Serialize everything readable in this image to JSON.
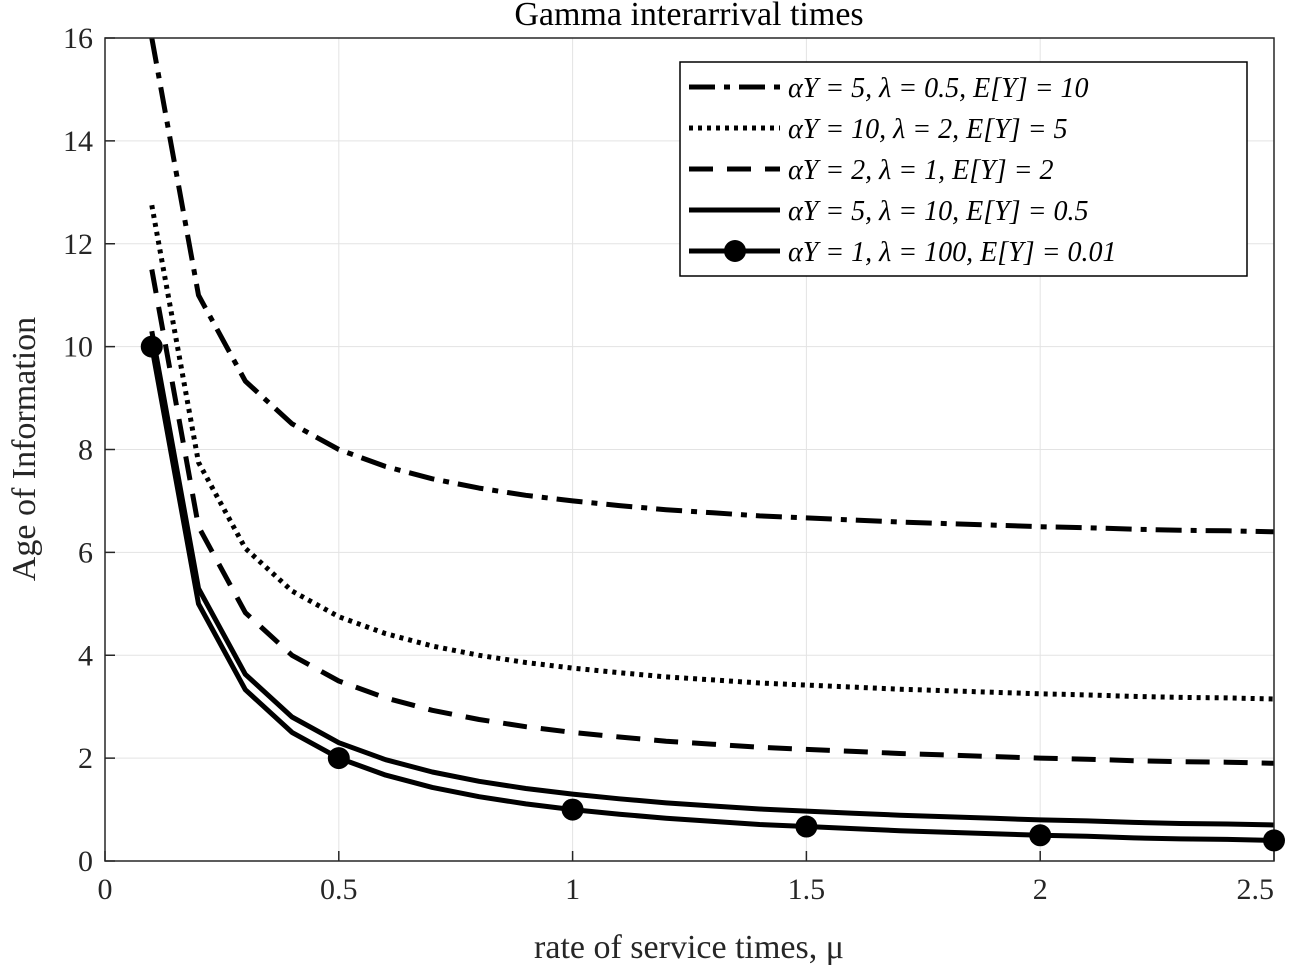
{
  "chart_data": {
    "type": "line",
    "title": "Gamma interarrival times",
    "xlabel": "rate of service times, μ",
    "ylabel": "Age of Information",
    "xlim": [
      0,
      2.5
    ],
    "ylim": [
      0,
      16
    ],
    "xticks": [
      0,
      0.5,
      1,
      1.5,
      2,
      2.5
    ],
    "xtick_labels": [
      "0",
      "0.5",
      "1",
      "1.5",
      "2",
      "2.5"
    ],
    "yticks": [
      0,
      2,
      4,
      6,
      8,
      10,
      12,
      14,
      16
    ],
    "ytick_labels": [
      "0",
      "2",
      "4",
      "6",
      "8",
      "10",
      "12",
      "14",
      "16"
    ],
    "grid": true,
    "legend_position": "top-right",
    "x": [
      0.1,
      0.2,
      0.3,
      0.4,
      0.5,
      0.6,
      0.7,
      0.8,
      0.9,
      1.0,
      1.1,
      1.2,
      1.3,
      1.4,
      1.5,
      1.6,
      1.7,
      1.8,
      1.9,
      2.0,
      2.1,
      2.2,
      2.3,
      2.4,
      2.5
    ],
    "series": [
      {
        "name": "αY = 5,  λ = 0.5,  E[Y] = 10",
        "style": "dashdot",
        "color": "#000000",
        "values": [
          16.0,
          11.0,
          9.33,
          8.5,
          8.0,
          7.67,
          7.43,
          7.25,
          7.11,
          7.0,
          6.91,
          6.83,
          6.77,
          6.71,
          6.67,
          6.63,
          6.59,
          6.56,
          6.53,
          6.5,
          6.48,
          6.45,
          6.43,
          6.42,
          6.4
        ]
      },
      {
        "name": "αY = 10, λ = 2,  E[Y] = 5",
        "style": "dotted",
        "color": "#000000",
        "values": [
          12.75,
          7.75,
          6.08,
          5.25,
          4.75,
          4.42,
          4.18,
          4.0,
          3.86,
          3.75,
          3.66,
          3.58,
          3.52,
          3.46,
          3.42,
          3.38,
          3.34,
          3.31,
          3.28,
          3.25,
          3.23,
          3.2,
          3.18,
          3.17,
          3.15
        ]
      },
      {
        "name": "αY = 2,  λ = 1,  E[Y] = 2",
        "style": "dashed",
        "color": "#000000",
        "values": [
          11.5,
          6.5,
          4.83,
          4.0,
          3.5,
          3.17,
          2.93,
          2.75,
          2.61,
          2.5,
          2.41,
          2.33,
          2.27,
          2.21,
          2.17,
          2.13,
          2.09,
          2.06,
          2.03,
          2.0,
          1.98,
          1.95,
          1.93,
          1.92,
          1.9
        ]
      },
      {
        "name": "αY = 5,  λ = 10,  E[Y] = 0.5",
        "style": "solid",
        "color": "#000000",
        "values": [
          10.3,
          5.3,
          3.63,
          2.8,
          2.3,
          1.97,
          1.73,
          1.55,
          1.41,
          1.3,
          1.21,
          1.13,
          1.07,
          1.01,
          0.97,
          0.93,
          0.89,
          0.86,
          0.83,
          0.8,
          0.78,
          0.75,
          0.73,
          0.72,
          0.7
        ]
      },
      {
        "name": "αY = 1,  λ = 100,  E[Y] = 0.01",
        "style": "solid-marker",
        "color": "#000000",
        "marker_x": [
          0.1,
          0.5,
          1.0,
          1.5,
          2.0,
          2.5
        ],
        "values": [
          10.0,
          5.0,
          3.33,
          2.5,
          2.0,
          1.67,
          1.43,
          1.25,
          1.11,
          1.0,
          0.91,
          0.83,
          0.77,
          0.71,
          0.67,
          0.63,
          0.59,
          0.56,
          0.53,
          0.5,
          0.48,
          0.45,
          0.43,
          0.42,
          0.4
        ]
      }
    ]
  }
}
